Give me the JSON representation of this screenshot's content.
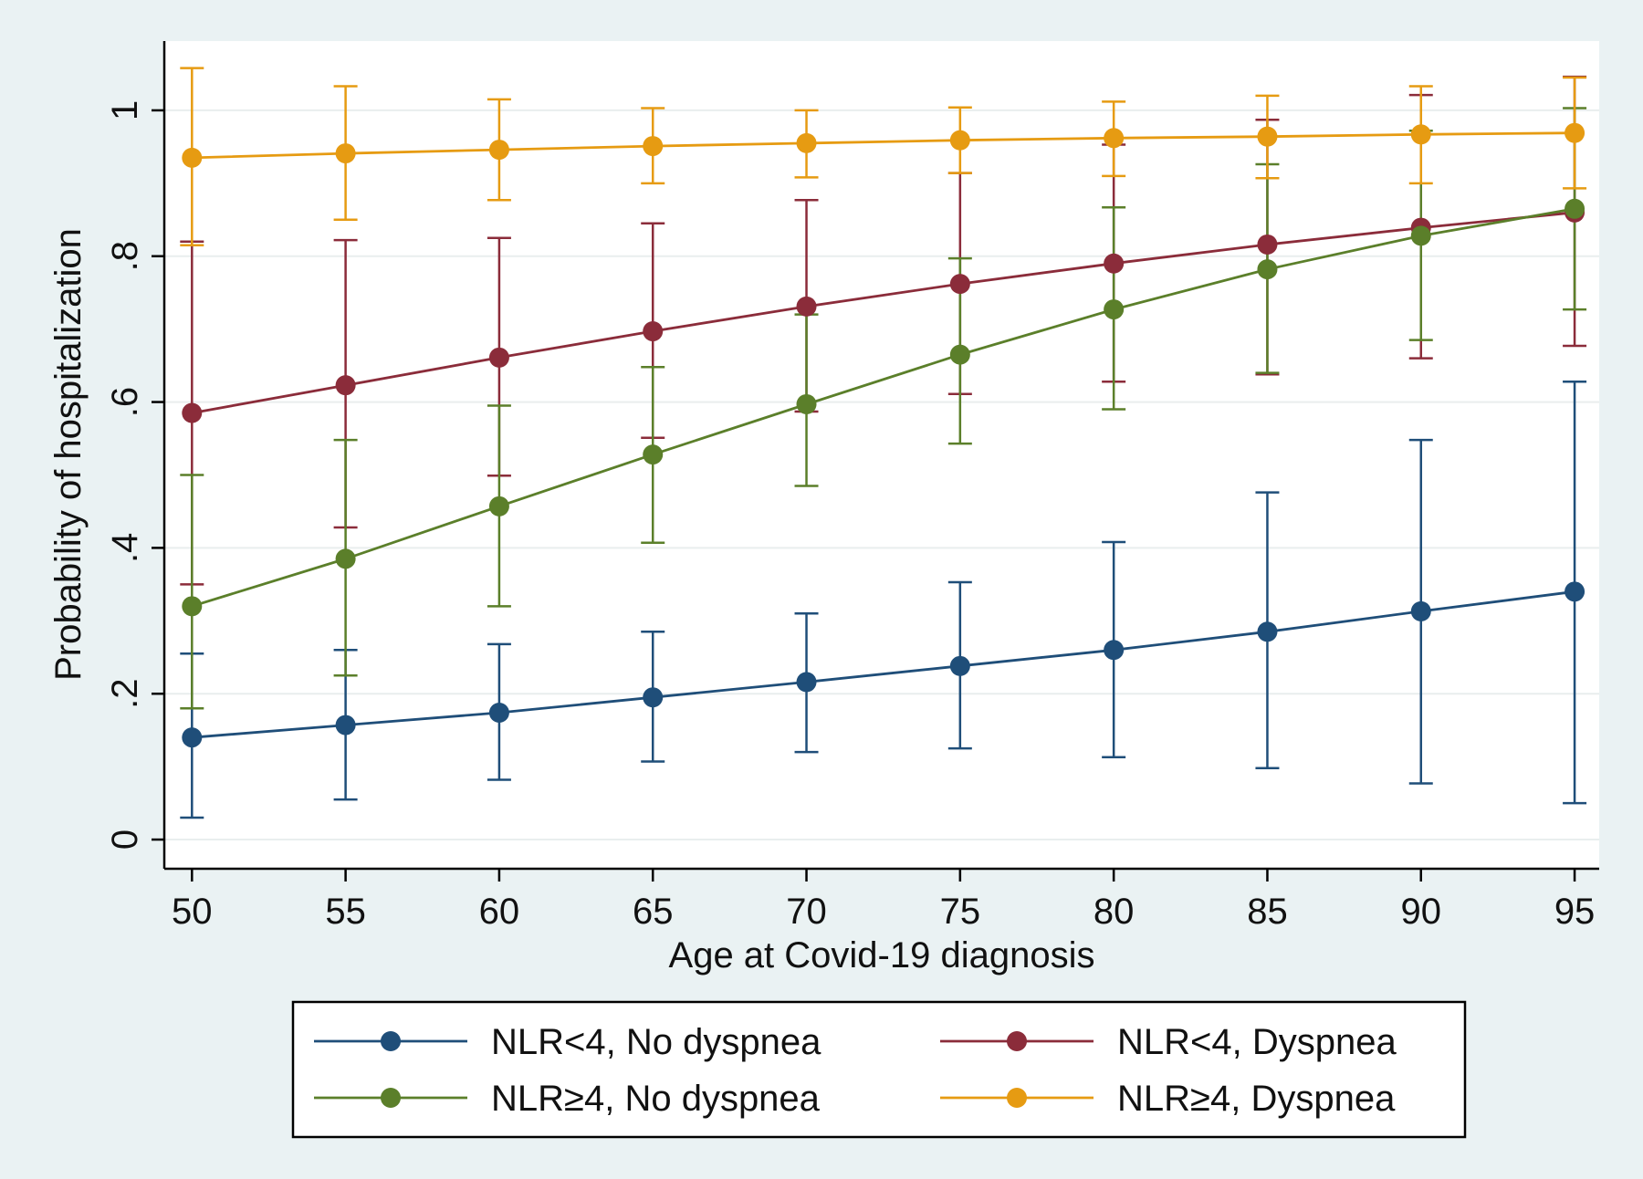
{
  "chart_data": {
    "type": "line",
    "title": "",
    "xlabel": "Age at Covid-19 diagnosis",
    "ylabel": "Probability of hospitalization",
    "x": [
      50,
      55,
      60,
      65,
      70,
      75,
      80,
      85,
      90,
      95
    ],
    "x_ticks": [
      50,
      55,
      60,
      65,
      70,
      75,
      80,
      85,
      90,
      95
    ],
    "x_tick_labels": [
      "50",
      "55",
      "60",
      "65",
      "70",
      "75",
      "80",
      "85",
      "90",
      "95"
    ],
    "y_ticks": [
      0,
      0.2,
      0.4,
      0.6,
      0.8,
      1
    ],
    "y_tick_labels": [
      "0",
      ".2",
      ".4",
      ".6",
      ".8",
      "1"
    ],
    "xlim": [
      49.1,
      95.8
    ],
    "ylim": [
      -0.04,
      1.095
    ],
    "grid": true,
    "legend_position": "bottom",
    "series": [
      {
        "name": "NLR<4, No dyspnea",
        "color": "#1f4e79",
        "values": [
          0.14,
          0.157,
          0.174,
          0.195,
          0.216,
          0.238,
          0.26,
          0.285,
          0.313,
          0.34
        ],
        "lower": [
          0.03,
          0.055,
          0.082,
          0.107,
          0.12,
          0.125,
          0.113,
          0.098,
          0.077,
          0.05
        ],
        "upper": [
          0.255,
          0.26,
          0.268,
          0.285,
          0.31,
          0.353,
          0.408,
          0.476,
          0.548,
          0.628
        ]
      },
      {
        "name": "NLR<4, Dyspnea",
        "color": "#8b2c3a",
        "values": [
          0.585,
          0.623,
          0.661,
          0.697,
          0.731,
          0.762,
          0.79,
          0.816,
          0.839,
          0.86
        ],
        "lower": [
          0.35,
          0.428,
          0.499,
          0.551,
          0.587,
          0.611,
          0.628,
          0.638,
          0.66,
          0.677
        ],
        "upper": [
          0.82,
          0.822,
          0.825,
          0.845,
          0.877,
          0.914,
          0.953,
          0.987,
          1.021,
          1.046
        ]
      },
      {
        "name": "NLR≥4, No dyspnea",
        "color": "#5b7f2a",
        "values": [
          0.32,
          0.385,
          0.457,
          0.528,
          0.597,
          0.665,
          0.727,
          0.782,
          0.828,
          0.865
        ],
        "lower": [
          0.18,
          0.225,
          0.32,
          0.407,
          0.485,
          0.543,
          0.59,
          0.64,
          0.685,
          0.727
        ],
        "upper": [
          0.5,
          0.548,
          0.595,
          0.648,
          0.72,
          0.797,
          0.867,
          0.926,
          0.972,
          1.003
        ]
      },
      {
        "name": "NLR≥4, Dyspnea",
        "color": "#e69b12",
        "values": [
          0.935,
          0.941,
          0.946,
          0.951,
          0.955,
          0.959,
          0.962,
          0.964,
          0.967,
          0.969
        ],
        "lower": [
          0.815,
          0.85,
          0.877,
          0.9,
          0.908,
          0.914,
          0.91,
          0.907,
          0.9,
          0.893
        ],
        "upper": [
          1.058,
          1.033,
          1.015,
          1.003,
          1.0,
          1.004,
          1.012,
          1.02,
          1.033,
          1.045
        ]
      }
    ]
  }
}
